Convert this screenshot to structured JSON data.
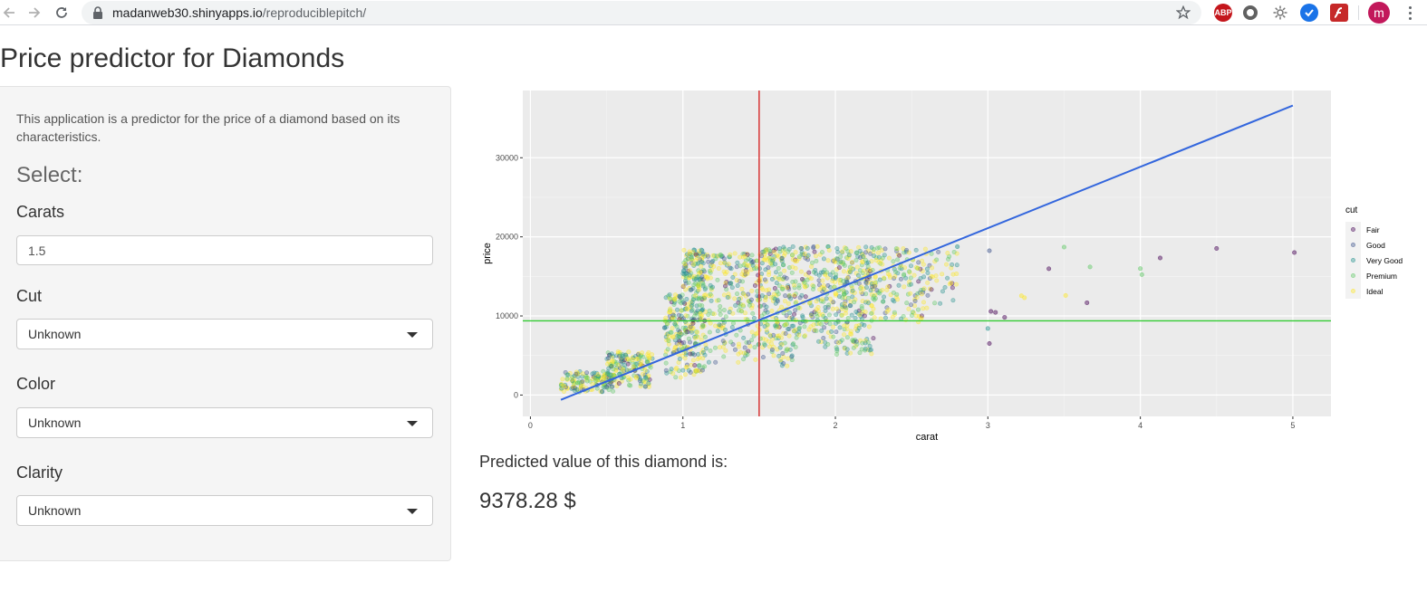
{
  "browser": {
    "url_host": "madanweb30.shinyapps.io",
    "url_path": "/reproduciblepitch/",
    "back_icon": "arrow-left-icon",
    "forward_icon": "arrow-right-icon",
    "reload_icon": "reload-icon",
    "lock_icon": "lock-icon",
    "bookmark_icon": "star-icon",
    "extensions": [
      {
        "name": "adblock-icon",
        "label": "ABP",
        "color": "#c4161c"
      },
      {
        "name": "circle-extension-icon",
        "label": "",
        "color": "#616161"
      },
      {
        "name": "gear-extension-icon",
        "label": "",
        "color": "#757575"
      },
      {
        "name": "check-extension-icon",
        "label": "",
        "color": "#1a73e8"
      },
      {
        "name": "flash-extension-icon",
        "label": "",
        "color": "#c62828"
      }
    ],
    "profile_letter": "m",
    "profile_color": "#c2185b"
  },
  "page": {
    "title": "Price predictor for Diamonds"
  },
  "sidebar": {
    "intro": "This application is a predictor for the price of a diamond based on its characteristics.",
    "select_heading": "Select:",
    "carats_label": "Carats",
    "carats_value": "1.5",
    "cut_label": "Cut",
    "cut_value": "Unknown",
    "color_label": "Color",
    "color_value": "Unknown",
    "clarity_label": "Clarity",
    "clarity_value": "Unknown"
  },
  "result": {
    "label": "Predicted value of this diamond is:",
    "value": "9378.28 $"
  },
  "chart_data": {
    "type": "scatter",
    "xlabel": "carat",
    "ylabel": "price",
    "xlim": [
      -0.05,
      5.25
    ],
    "ylim": [
      -2700,
      38500
    ],
    "x_ticks": [
      0,
      1,
      2,
      3,
      4,
      5
    ],
    "y_ticks": [
      0,
      10000,
      20000,
      30000
    ],
    "y_tick_labels": [
      "0",
      "10000",
      "20000",
      "30000"
    ],
    "grid": true,
    "panel_background": "#ebebeb",
    "legend": {
      "title": "cut",
      "placement": "right",
      "entries": [
        "Fair",
        "Good",
        "Very Good",
        "Premium",
        "Ideal"
      ],
      "colors": [
        "#440154",
        "#3b528b",
        "#21908c",
        "#5dc863",
        "#fde725"
      ]
    },
    "regression_line": {
      "x": [
        0.2,
        5.0
      ],
      "y": [
        -600,
        36600
      ],
      "color": "#3366dd"
    },
    "vline": {
      "x": 1.5,
      "color": "#d62728"
    },
    "hline": {
      "y": 9378.28,
      "color": "#33cc33"
    },
    "outliers": [
      {
        "x": 5.01,
        "y": 18018,
        "cut": 0
      },
      {
        "x": 4.5,
        "y": 18531,
        "cut": 0
      },
      {
        "x": 4.13,
        "y": 17329,
        "cut": 0
      },
      {
        "x": 4.01,
        "y": 15223,
        "cut": 3
      },
      {
        "x": 4.0,
        "y": 15984,
        "cut": 3
      },
      {
        "x": 3.67,
        "y": 16193,
        "cut": 3
      },
      {
        "x": 3.5,
        "y": 18701,
        "cut": 3
      },
      {
        "x": 3.4,
        "y": 15964,
        "cut": 0
      },
      {
        "x": 3.65,
        "y": 11668,
        "cut": 0
      },
      {
        "x": 3.51,
        "y": 12587,
        "cut": 4
      },
      {
        "x": 3.24,
        "y": 12300,
        "cut": 4
      },
      {
        "x": 3.22,
        "y": 12545,
        "cut": 4
      },
      {
        "x": 3.11,
        "y": 9823,
        "cut": 0
      },
      {
        "x": 3.05,
        "y": 10453,
        "cut": 0
      },
      {
        "x": 3.02,
        "y": 10577,
        "cut": 0
      },
      {
        "x": 3.0,
        "y": 8410,
        "cut": 2
      },
      {
        "x": 3.01,
        "y": 6512,
        "cut": 0
      },
      {
        "x": 3.01,
        "y": 18242,
        "cut": 1
      },
      {
        "x": 2.8,
        "y": 18756,
        "cut": 2
      }
    ],
    "density_bands": [
      {
        "x0": 0.2,
        "x1": 0.55,
        "ymin": 300,
        "ymax": 3000,
        "n": 140
      },
      {
        "x0": 0.5,
        "x1": 0.8,
        "ymin": 900,
        "ymax": 5500,
        "n": 160
      },
      {
        "x0": 0.88,
        "x1": 1.0,
        "ymin": 2000,
        "ymax": 13000,
        "n": 110
      },
      {
        "x0": 1.0,
        "x1": 1.15,
        "ymin": 2500,
        "ymax": 18500,
        "n": 260
      },
      {
        "x0": 1.15,
        "x1": 1.5,
        "ymin": 4000,
        "ymax": 18000,
        "n": 220
      },
      {
        "x0": 1.5,
        "x1": 1.75,
        "ymin": 3500,
        "ymax": 18800,
        "n": 240
      },
      {
        "x0": 1.75,
        "x1": 2.0,
        "ymin": 6000,
        "ymax": 18800,
        "n": 160
      },
      {
        "x0": 2.0,
        "x1": 2.25,
        "ymin": 5000,
        "ymax": 18800,
        "n": 240
      },
      {
        "x0": 2.25,
        "x1": 2.6,
        "ymin": 9000,
        "ymax": 18800,
        "n": 150
      },
      {
        "x0": 2.6,
        "x1": 2.8,
        "ymin": 11000,
        "ymax": 18500,
        "n": 40
      }
    ]
  }
}
